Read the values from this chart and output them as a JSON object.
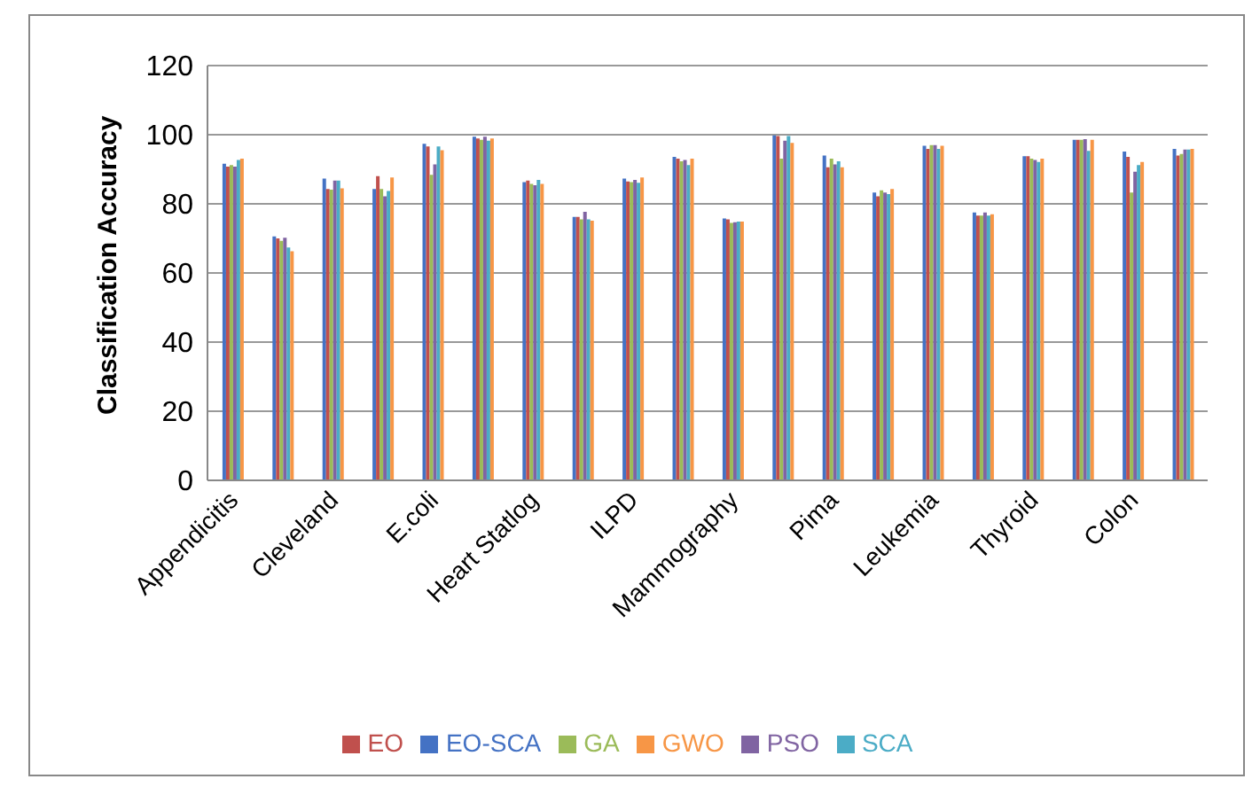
{
  "chart_data": {
    "type": "bar",
    "ylabel": "Classification Accuracy",
    "categories": [
      "Appendicitis",
      null,
      "Cleveland",
      null,
      "E.coli",
      null,
      "Heart Statlog",
      null,
      "ILPD",
      null,
      "Mammography",
      null,
      "Pima",
      null,
      "Leukemia",
      null,
      "Thyroid",
      null,
      "Colon",
      null
    ],
    "series": [
      {
        "name": "EO-SCA",
        "color": "#4472c4",
        "values": [
          91.6,
          70.6,
          87.3,
          84.3,
          97.4,
          99.4,
          86.3,
          76.2,
          87.3,
          93.6,
          75.8,
          99.8,
          94.0,
          83.3,
          96.8,
          77.5,
          93.8,
          98.5,
          95.1,
          95.9
        ]
      },
      {
        "name": "EO",
        "color": "#c0504d",
        "values": [
          90.8,
          70.0,
          84.3,
          88.0,
          96.6,
          98.9,
          86.7,
          76.2,
          86.5,
          93.1,
          75.5,
          99.6,
          90.6,
          82.2,
          95.9,
          76.6,
          93.8,
          98.5,
          93.6,
          94.0
        ]
      },
      {
        "name": "GA",
        "color": "#9bbb59",
        "values": [
          91.2,
          69.3,
          84.1,
          84.3,
          88.4,
          98.5,
          85.8,
          75.5,
          86.3,
          92.3,
          74.5,
          93.1,
          93.1,
          83.9,
          97.0,
          76.6,
          93.1,
          98.5,
          83.3,
          94.4
        ]
      },
      {
        "name": "PSO",
        "color": "#8064a2",
        "values": [
          90.8,
          70.2,
          86.7,
          82.2,
          91.4,
          99.4,
          85.4,
          77.7,
          86.9,
          92.7,
          74.7,
          98.3,
          91.4,
          83.3,
          97.0,
          77.5,
          92.7,
          98.7,
          89.3,
          95.7
        ]
      },
      {
        "name": "SCA",
        "color": "#4bacc6",
        "values": [
          92.7,
          67.4,
          86.7,
          83.7,
          96.6,
          98.3,
          86.9,
          75.5,
          86.1,
          91.2,
          74.9,
          99.6,
          92.3,
          82.8,
          95.9,
          76.6,
          92.1,
          95.3,
          91.2,
          95.7
        ]
      },
      {
        "name": "GWO",
        "color": "#f79646",
        "values": [
          93.1,
          66.3,
          84.5,
          87.6,
          95.5,
          98.9,
          85.8,
          75.1,
          87.6,
          93.1,
          74.9,
          97.6,
          90.6,
          84.3,
          96.8,
          77.0,
          93.1,
          98.5,
          92.1,
          95.9
        ]
      }
    ],
    "ylim": [
      0,
      120
    ],
    "yticks": [
      0,
      20,
      40,
      60,
      80,
      100,
      120
    ],
    "grid": "y",
    "legend": "bottom"
  }
}
